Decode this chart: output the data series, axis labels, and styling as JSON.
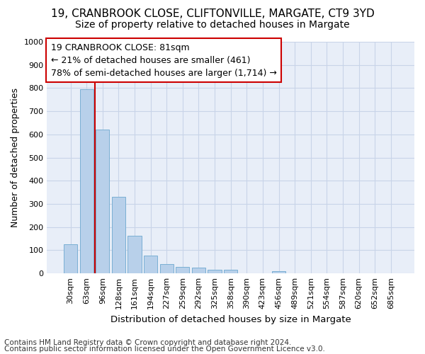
{
  "title1": "19, CRANBROOK CLOSE, CLIFTONVILLE, MARGATE, CT9 3YD",
  "title2": "Size of property relative to detached houses in Margate",
  "xlabel": "Distribution of detached houses by size in Margate",
  "ylabel": "Number of detached properties",
  "footnote1": "Contains HM Land Registry data © Crown copyright and database right 2024.",
  "footnote2": "Contains public sector information licensed under the Open Government Licence v3.0.",
  "bins": [
    "30sqm",
    "63sqm",
    "96sqm",
    "128sqm",
    "161sqm",
    "194sqm",
    "227sqm",
    "259sqm",
    "292sqm",
    "325sqm",
    "358sqm",
    "390sqm",
    "423sqm",
    "456sqm",
    "489sqm",
    "521sqm",
    "554sqm",
    "587sqm",
    "620sqm",
    "652sqm",
    "685sqm"
  ],
  "values": [
    125,
    795,
    620,
    330,
    162,
    78,
    40,
    28,
    25,
    15,
    15,
    0,
    0,
    10,
    0,
    0,
    0,
    0,
    0,
    0,
    0
  ],
  "bar_color": "#b8d0ea",
  "bar_edgecolor": "#7aafd4",
  "vline_color": "#cc0000",
  "vline_x": 1.5,
  "ylim": [
    0,
    1000
  ],
  "yticks": [
    0,
    100,
    200,
    300,
    400,
    500,
    600,
    700,
    800,
    900,
    1000
  ],
  "annotation_line1": "19 CRANBROOK CLOSE: 81sqm",
  "annotation_line2": "← 21% of detached houses are smaller (461)",
  "annotation_line3": "78% of semi-detached houses are larger (1,714) →",
  "annotation_box_facecolor": "#ffffff",
  "annotation_box_edgecolor": "#cc0000",
  "grid_color": "#c8d4e8",
  "bg_color": "#e8eef8",
  "title1_fontsize": 11,
  "title2_fontsize": 10,
  "tick_fontsize": 8,
  "ylabel_fontsize": 9,
  "xlabel_fontsize": 9.5,
  "annotation_fontsize": 9,
  "footnote_fontsize": 7.5
}
